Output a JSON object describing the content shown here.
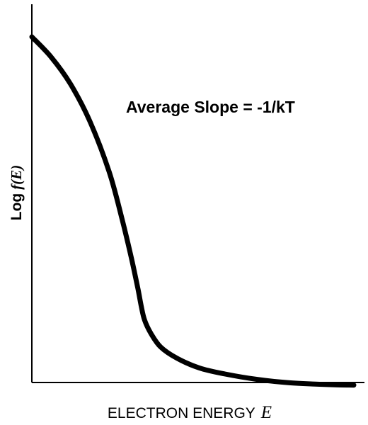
{
  "chart_data": {
    "type": "line",
    "title": "",
    "xlabel": "ELECTRON ENERGY",
    "xlabel_var": "E",
    "ylabel_prefix": "Log",
    "ylabel_func": "f(E)",
    "annotation": "Average Slope = -1/kT",
    "axes": "left-and-bottom",
    "ticks": "none",
    "grid": false,
    "legend": "none",
    "xlim": [
      0,
      100
    ],
    "ylim": [
      0,
      100
    ],
    "series": [
      {
        "color": "#000000",
        "x": [
          0,
          6,
          12,
          18,
          24,
          28,
          31,
          33,
          34,
          35,
          37,
          40,
          45,
          52,
          60,
          70,
          80,
          88,
          94,
          100
        ],
        "y": [
          100,
          94,
          86,
          75,
          60,
          46,
          34,
          25,
          20,
          16,
          12,
          8,
          4.7,
          1.8,
          0,
          -1.6,
          -2.6,
          -3,
          -3.2,
          -3.3
        ]
      }
    ]
  }
}
